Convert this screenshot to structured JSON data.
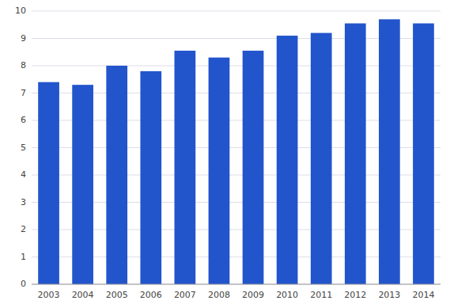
{
  "chart_data": {
    "type": "bar",
    "categories": [
      "2003",
      "2004",
      "2005",
      "2006",
      "2007",
      "2008",
      "2009",
      "2010",
      "2011",
      "2012",
      "2013",
      "2014"
    ],
    "values": [
      7.4,
      7.3,
      8.0,
      7.8,
      8.55,
      8.3,
      8.55,
      9.1,
      9.2,
      9.55,
      9.7,
      9.55
    ],
    "color": "#2255CC",
    "ylim": [
      0,
      10
    ],
    "yticks": [
      0,
      1,
      2,
      3,
      4,
      5,
      6,
      7,
      8,
      9,
      10
    ],
    "grid": true
  }
}
